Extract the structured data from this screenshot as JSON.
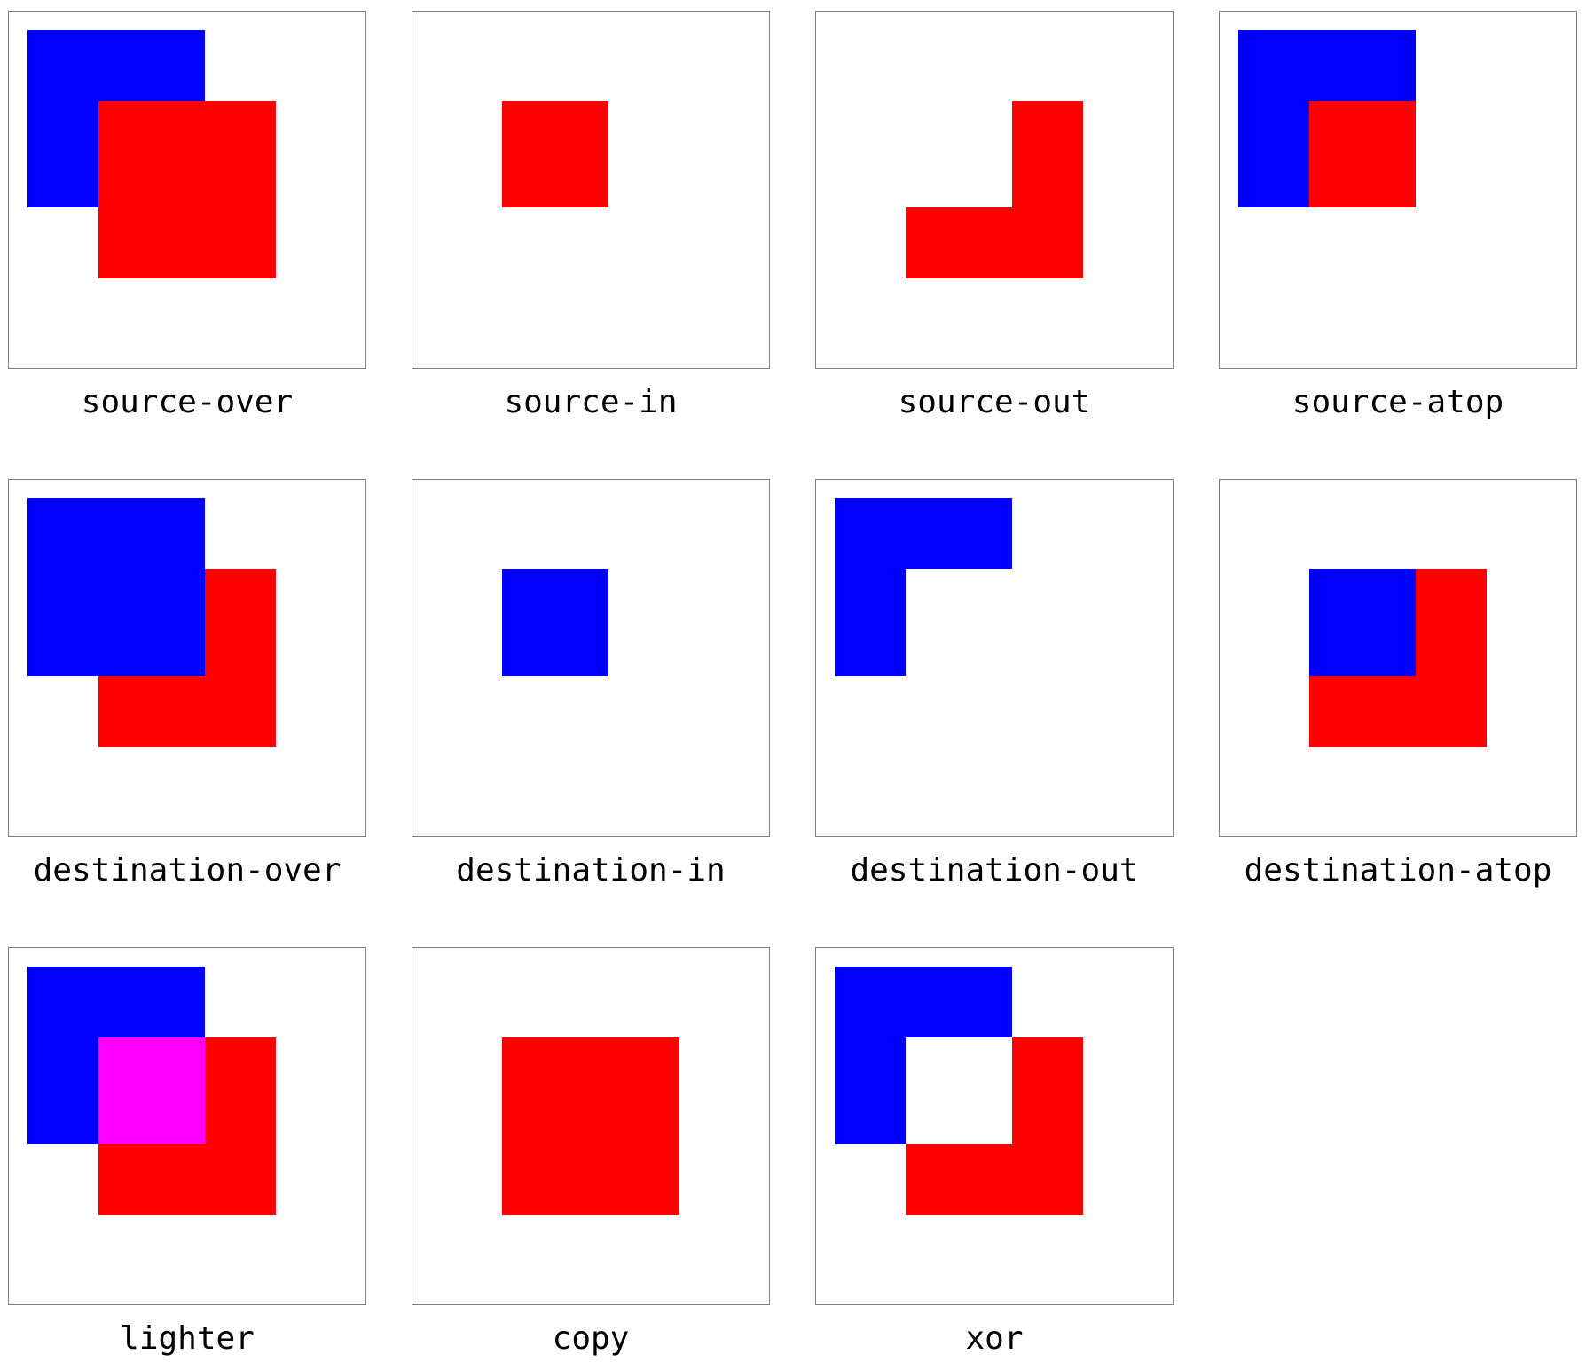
{
  "colors": {
    "destination": "#0000ff",
    "source": "#ff0000",
    "lighter_overlap": "#ff00ff",
    "panel_border": "#808080",
    "background": "#ffffff"
  },
  "modes": [
    {
      "label": "source-over"
    },
    {
      "label": "source-in"
    },
    {
      "label": "source-out"
    },
    {
      "label": "source-atop"
    },
    {
      "label": "destination-over"
    },
    {
      "label": "destination-in"
    },
    {
      "label": "destination-out"
    },
    {
      "label": "destination-atop"
    },
    {
      "label": "lighter"
    },
    {
      "label": "copy"
    },
    {
      "label": "xor"
    }
  ]
}
